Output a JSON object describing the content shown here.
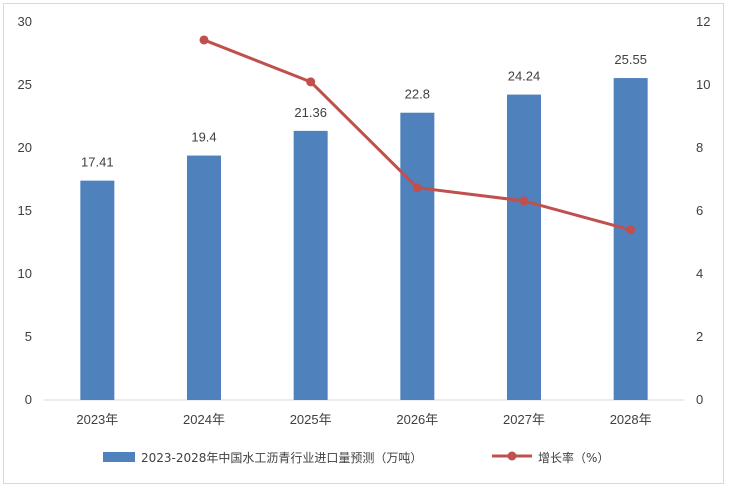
{
  "chart_data": {
    "type": "bar",
    "categories": [
      "2023年",
      "2024年",
      "2025年",
      "2026年",
      "2027年",
      "2028年"
    ],
    "series": [
      {
        "name": "2023-2028年中国水工沥青行业进口量预测（万吨）",
        "type": "bar",
        "axis": "left",
        "color": "#4F81BD",
        "values": [
          17.41,
          19.4,
          21.36,
          22.8,
          24.24,
          25.55
        ],
        "data_labels": [
          "17.41",
          "19.4",
          "21.36",
          "22.8",
          "24.24",
          "25.55"
        ]
      },
      {
        "name": "增长率（%）",
        "type": "line",
        "axis": "right",
        "color": "#C0504D",
        "values": [
          null,
          11.43,
          10.1,
          6.74,
          6.32,
          5.4
        ]
      }
    ],
    "y_left": {
      "min": 0,
      "max": 30,
      "step": 5,
      "ticks": [
        "0",
        "5",
        "10",
        "15",
        "20",
        "25",
        "30"
      ]
    },
    "y_right": {
      "min": 0,
      "max": 12,
      "step": 2,
      "ticks": [
        "0",
        "2",
        "4",
        "6",
        "8",
        "10",
        "12"
      ]
    },
    "grid": false,
    "legend_position": "bottom"
  }
}
